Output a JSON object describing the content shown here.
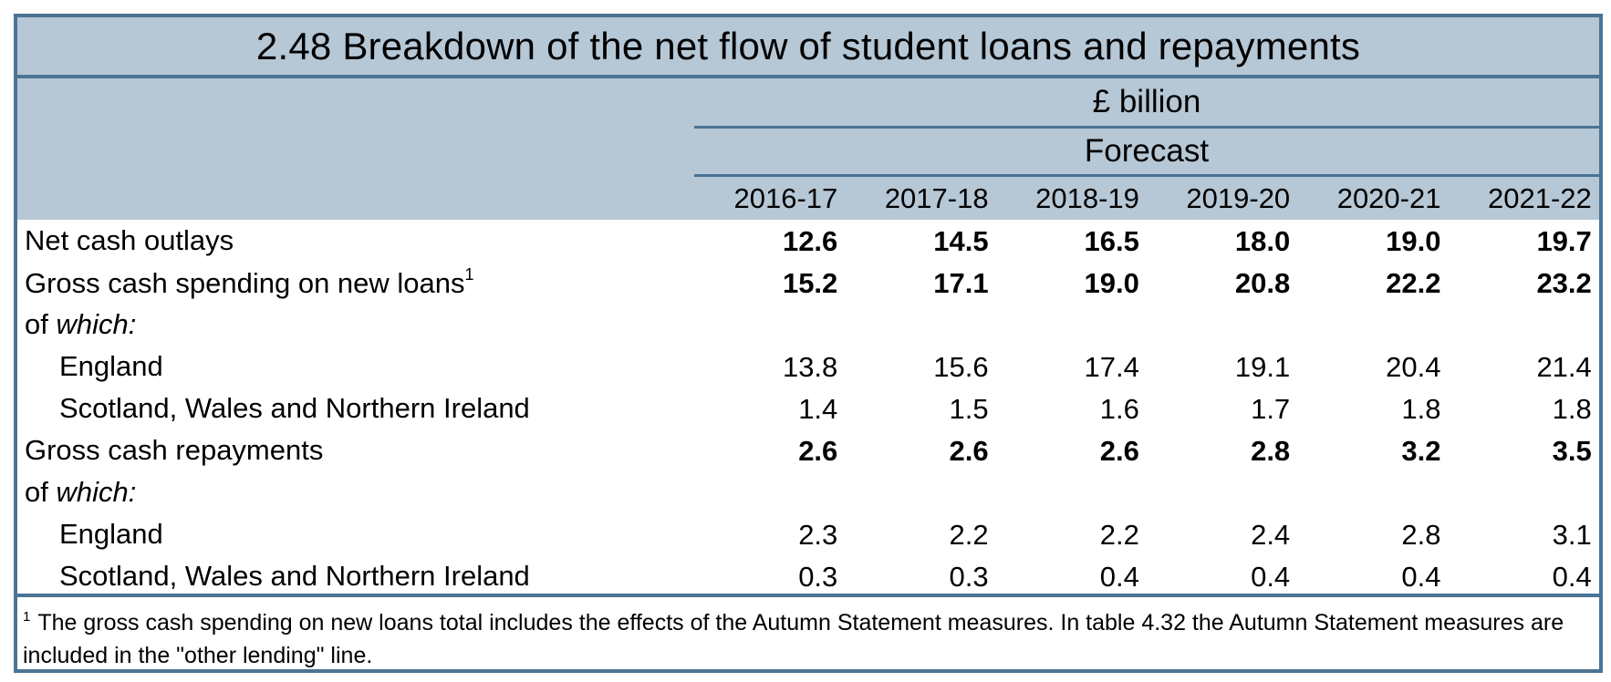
{
  "table": {
    "title": "2.48 Breakdown of the net flow of student loans and repayments",
    "units": "£ billion",
    "period_label": "Forecast",
    "columns": [
      "2016-17",
      "2017-18",
      "2018-19",
      "2019-20",
      "2020-21",
      "2021-22"
    ],
    "rows": [
      {
        "label": "Net cash outlays",
        "style": "bold",
        "values": [
          "12.6",
          "14.5",
          "16.5",
          "18.0",
          "19.0",
          "19.7"
        ]
      },
      {
        "label": "Gross cash spending on new loans",
        "footnote_ref": "1",
        "style": "bold",
        "values": [
          "15.2",
          "17.1",
          "19.0",
          "20.8",
          "22.2",
          "23.2"
        ]
      },
      {
        "label_prefix": "of ",
        "label_italic": "which:",
        "style": "italic",
        "values": []
      },
      {
        "label": "England",
        "style": "sub",
        "values": [
          "13.8",
          "15.6",
          "17.4",
          "19.1",
          "20.4",
          "21.4"
        ]
      },
      {
        "label": "Scotland, Wales and Northern Ireland",
        "style": "sub",
        "values": [
          "1.4",
          "1.5",
          "1.6",
          "1.7",
          "1.8",
          "1.8"
        ]
      },
      {
        "label": "Gross cash repayments",
        "style": "bold",
        "values": [
          "2.6",
          "2.6",
          "2.6",
          "2.8",
          "3.2",
          "3.5"
        ]
      },
      {
        "label_prefix": "of ",
        "label_italic": "which:",
        "style": "italic",
        "values": []
      },
      {
        "label": "England",
        "style": "sub",
        "values": [
          "2.3",
          "2.2",
          "2.2",
          "2.4",
          "2.8",
          "3.1"
        ]
      },
      {
        "label": "Scotland, Wales and Northern Ireland",
        "style": "sub",
        "values": [
          "0.3",
          "0.3",
          "0.4",
          "0.4",
          "0.4",
          "0.4"
        ]
      }
    ],
    "footnote": {
      "marker": "1",
      "text": "The gross cash spending on new loans total includes the effects of the Autumn Statement measures. In table 4.32 the Autumn Statement measures are included in the \"other lending\" line."
    }
  },
  "colors": {
    "header_bg": "#b6c7d5",
    "border": "#4c7394"
  }
}
